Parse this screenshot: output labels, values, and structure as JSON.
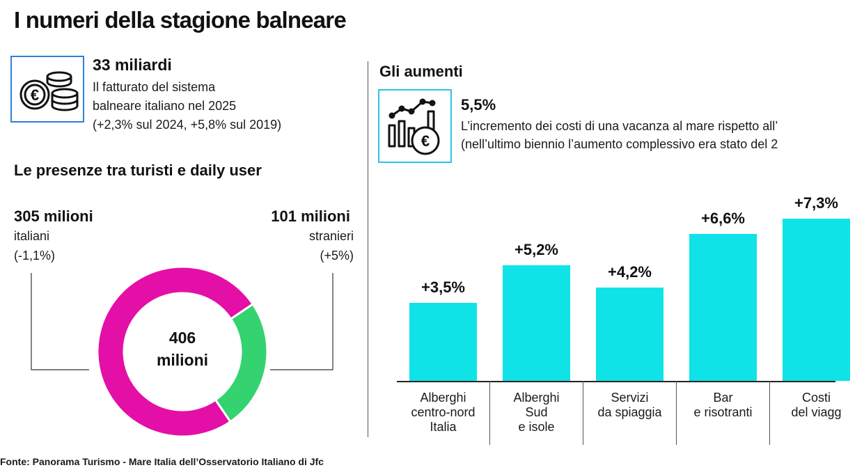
{
  "title": "I numeri della stagione balneare",
  "revenue": {
    "value": "33 miliardi",
    "line1": "Il fatturato del sistema",
    "line2": "balneare italiano nel 2025",
    "line3": "(+2,3% sul 2024, +5,8% sul 2019)",
    "icon": "coins-euro-icon"
  },
  "presence": {
    "heading": "Le presenze tra turisti e daily user",
    "italians_value": "305 milioni",
    "italians_label": "italiani",
    "italians_change": "(-1,1%)",
    "foreigners_value": "101 milioni",
    "foreigners_label": "stranieri",
    "foreigners_change": "(+5%)",
    "total_line1": "406",
    "total_line2": "milioni",
    "colors": {
      "italians": "#e40fa6",
      "foreigners": "#34d36f"
    }
  },
  "increases": {
    "heading": "Gli aumenti",
    "value": "5,5%",
    "line1": "L’incremento dei costi di una vacanza al mare rispetto all’",
    "line2": "(nell’ultimo biennio l’aumento complessivo era stato del 2",
    "icon": "growth-chart-euro-icon"
  },
  "chart_data": [
    {
      "type": "pie",
      "labels": [
        "italiani",
        "stranieri"
      ],
      "values": [
        305,
        101
      ],
      "colors": [
        "#e40fa6",
        "#34d36f"
      ],
      "center_text": "406 milioni"
    },
    {
      "type": "bar",
      "title": "Gli aumenti",
      "categories": [
        [
          "Alberghi",
          "centro-nord",
          "Italia"
        ],
        [
          "Alberghi",
          "Sud",
          "e isole"
        ],
        [
          "Servizi",
          "da spiaggia"
        ],
        [
          "Bar",
          "e risotranti"
        ],
        [
          "Costi",
          "del viagg"
        ]
      ],
      "values": [
        3.5,
        5.2,
        4.2,
        6.6,
        7.3
      ],
      "labels": [
        "+3,5%",
        "+5,2%",
        "+4,2%",
        "+6,6%",
        "+7,3%"
      ],
      "color": "#0fe3e8",
      "ylim": [
        0,
        7.6
      ]
    }
  ],
  "source": "Fonte: Panorama Turismo - Mare Italia dell’Osservatorio Italiano di Jfc"
}
